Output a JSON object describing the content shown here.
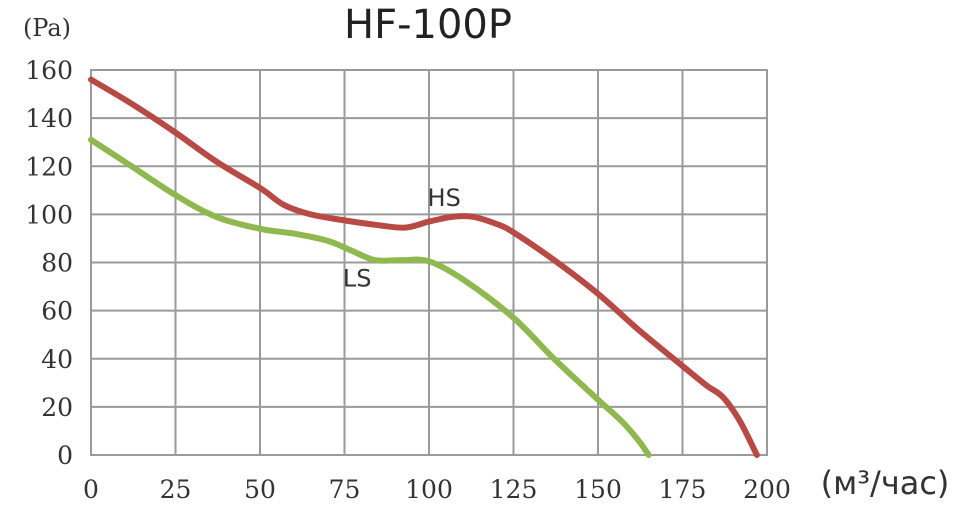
{
  "chart_data": {
    "type": "line",
    "title": "HF-100P",
    "ylabel": "(Pa)",
    "xlabel": "(м³/час)",
    "xlim": [
      0,
      200
    ],
    "ylim": [
      0,
      160
    ],
    "xticks": [
      "0",
      "25",
      "50",
      "75",
      "100",
      "125",
      "150",
      "175",
      "200"
    ],
    "yticks": [
      "0",
      "20",
      "40",
      "60",
      "80",
      "100",
      "120",
      "140",
      "160"
    ],
    "grid": true,
    "series": [
      {
        "name": "HS",
        "color": "#b84a45",
        "points": [
          [
            0,
            156
          ],
          [
            12,
            146
          ],
          [
            25,
            134
          ],
          [
            37,
            122
          ],
          [
            50,
            111
          ],
          [
            57,
            104
          ],
          [
            65,
            100
          ],
          [
            75,
            97.5
          ],
          [
            85,
            95.5
          ],
          [
            93,
            94.5
          ],
          [
            100,
            97
          ],
          [
            107,
            99
          ],
          [
            113,
            99
          ],
          [
            120,
            96
          ],
          [
            125,
            92.5
          ],
          [
            137,
            81
          ],
          [
            150,
            67
          ],
          [
            162,
            52
          ],
          [
            175,
            37
          ],
          [
            182,
            29
          ],
          [
            187,
            24
          ],
          [
            192,
            14
          ],
          [
            197,
            0
          ]
        ]
      },
      {
        "name": "LS",
        "color": "#8fb94f",
        "points": [
          [
            0,
            131
          ],
          [
            12,
            120
          ],
          [
            25,
            108
          ],
          [
            37,
            99
          ],
          [
            50,
            94
          ],
          [
            60,
            92
          ],
          [
            70,
            89
          ],
          [
            77,
            85
          ],
          [
            84,
            81
          ],
          [
            92,
            81
          ],
          [
            100,
            80.5
          ],
          [
            110,
            73
          ],
          [
            125,
            57
          ],
          [
            137,
            40
          ],
          [
            150,
            23
          ],
          [
            157,
            14
          ],
          [
            162,
            6
          ],
          [
            165,
            0
          ]
        ]
      }
    ]
  }
}
